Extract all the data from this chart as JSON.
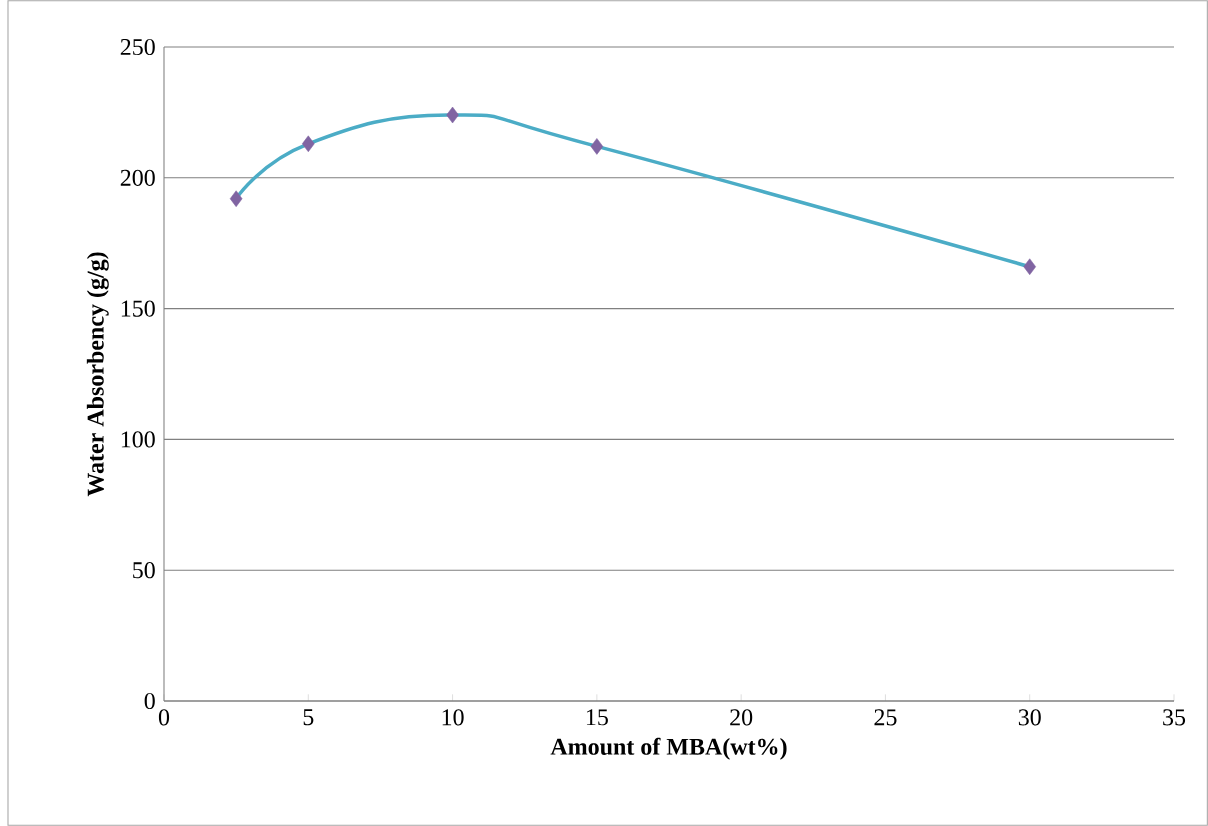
{
  "chart_data": {
    "type": "line",
    "xlabel": "Amount of MBA(wt%)",
    "ylabel": "Water Absorbency (g/g)",
    "x": [
      2.5,
      5,
      10,
      15,
      30
    ],
    "values": [
      192,
      213,
      224,
      212,
      166
    ],
    "color": "#4bacc6",
    "colors": [
      "#8064a2",
      "#8064a2",
      "#8064a2",
      "#8064a2",
      "#8064a2"
    ],
    "marker": "diamond",
    "line_style": "solid",
    "xlim": [
      0,
      35
    ],
    "xticks": [
      0,
      5,
      10,
      15,
      20,
      25,
      30,
      35
    ],
    "ylim": [
      0,
      250
    ],
    "yticks": [
      0,
      50,
      100,
      150,
      200,
      250
    ],
    "grid": "y"
  }
}
